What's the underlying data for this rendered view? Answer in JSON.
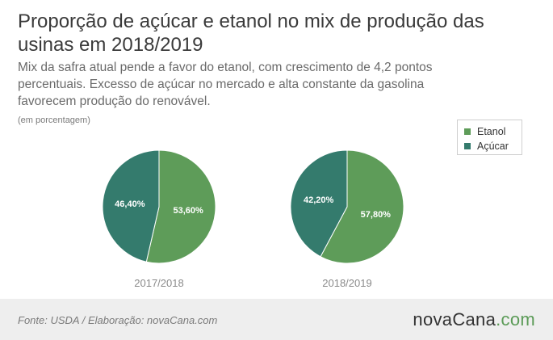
{
  "title": "Proporção de açúcar e etanol no mix de produção das usinas em 2018/2019",
  "subtitle": "Mix da safra atual pende a favor do etanol, com crescimento de 4,2 pontos percentuais. Excesso de açúcar no mercado e alta constante da gasolina favorecem produção do renovável.",
  "unit_note": "(em porcentagem)",
  "legend": [
    {
      "label": "Etanol",
      "color": "#5e9c59"
    },
    {
      "label": "Açúcar",
      "color": "#347b6d"
    }
  ],
  "footer": {
    "source": "Fonte: USDA / Elaboração: novaCana.com",
    "logo_main": "novaCana",
    "logo_tld": ".com"
  },
  "chart_data": [
    {
      "type": "pie",
      "title": "2017/2018",
      "slices": [
        {
          "name": "Etanol",
          "value": 53.6,
          "label": "53,60%",
          "color": "#5e9c59"
        },
        {
          "name": "Açúcar",
          "value": 46.4,
          "label": "46,40%",
          "color": "#347b6d"
        }
      ]
    },
    {
      "type": "pie",
      "title": "2018/2019",
      "slices": [
        {
          "name": "Etanol",
          "value": 57.8,
          "label": "57,80%",
          "color": "#5e9c59"
        },
        {
          "name": "Açúcar",
          "value": 42.2,
          "label": "42,20%",
          "color": "#347b6d"
        }
      ]
    }
  ]
}
